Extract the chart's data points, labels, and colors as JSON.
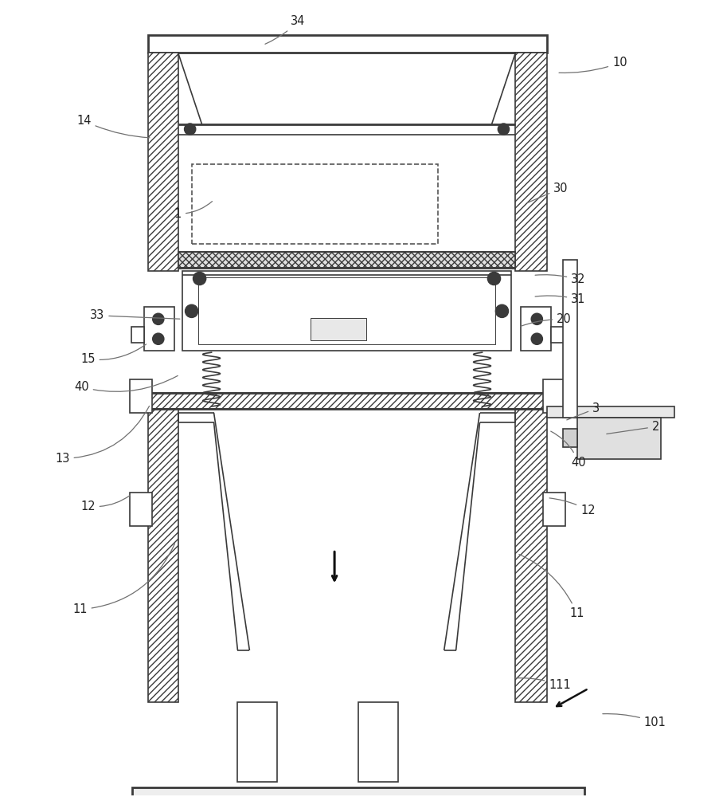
{
  "bg_color": "#ffffff",
  "line_color": "#3a3a3a",
  "fig_width": 9.04,
  "fig_height": 10.0,
  "lw_main": 1.2,
  "lw_thick": 2.0,
  "lw_thin": 0.7,
  "label_fontsize": 10.5,
  "label_color": "#222222"
}
